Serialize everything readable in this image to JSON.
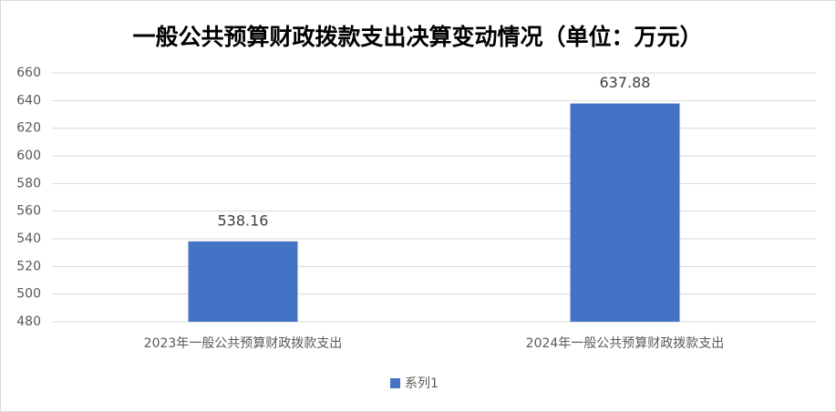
{
  "chart_data": {
    "type": "bar",
    "title": "一般公共预算财政拨款支出决算变动情况（单位：万元）",
    "categories": [
      "2023年一般公共预算财政拨款支出",
      "2024年一般公共预算财政拨款支出"
    ],
    "series": [
      {
        "name": "系列1",
        "color": "#4472c4",
        "values": [
          538.16,
          637.88
        ]
      }
    ],
    "ylim": [
      480,
      660
    ],
    "yticks": [
      480,
      500,
      520,
      540,
      560,
      580,
      600,
      620,
      640,
      660
    ],
    "grid": true,
    "legend": "bottom"
  }
}
